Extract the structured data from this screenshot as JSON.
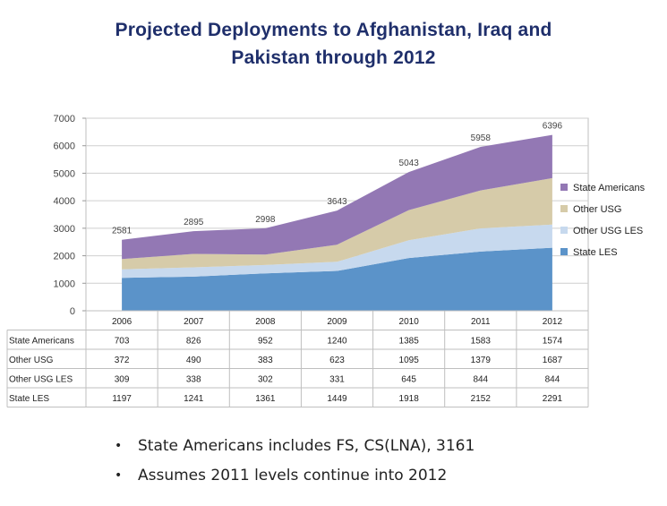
{
  "title_line1": "Projected Deployments to Afghanistan, Iraq and",
  "title_line2": "Pakistan through 2012",
  "chart_data": {
    "type": "area",
    "stacked": true,
    "categories": [
      "2006",
      "2007",
      "2008",
      "2009",
      "2010",
      "2011",
      "2012"
    ],
    "ylim": [
      0,
      7000
    ],
    "yticks": [
      0,
      1000,
      2000,
      3000,
      4000,
      5000,
      6000,
      7000
    ],
    "grid": true,
    "legend_position": "right",
    "totals": [
      2581,
      2895,
      2998,
      3643,
      5043,
      5958,
      6396
    ],
    "series": [
      {
        "name": "State LES",
        "values": [
          1197,
          1241,
          1361,
          1449,
          1918,
          2152,
          2291
        ],
        "color": "#5b93c9"
      },
      {
        "name": "Other USG LES",
        "values": [
          309,
          338,
          302,
          331,
          645,
          844,
          844
        ],
        "color": "#c7d9ee"
      },
      {
        "name": "Other USG",
        "values": [
          372,
          490,
          383,
          623,
          1095,
          1379,
          1687
        ],
        "color": "#d6cba9"
      },
      {
        "name": "State Americans",
        "values": [
          703,
          826,
          952,
          1240,
          1385,
          1583,
          1574
        ],
        "color": "#9378b4"
      }
    ],
    "table_row_order": [
      "State Americans",
      "Other USG",
      "Other USG LES",
      "State LES"
    ]
  },
  "bullets": [
    "State Americans includes FS, CS(LNA), 3161",
    "Assumes 2011 levels continue into 2012"
  ]
}
